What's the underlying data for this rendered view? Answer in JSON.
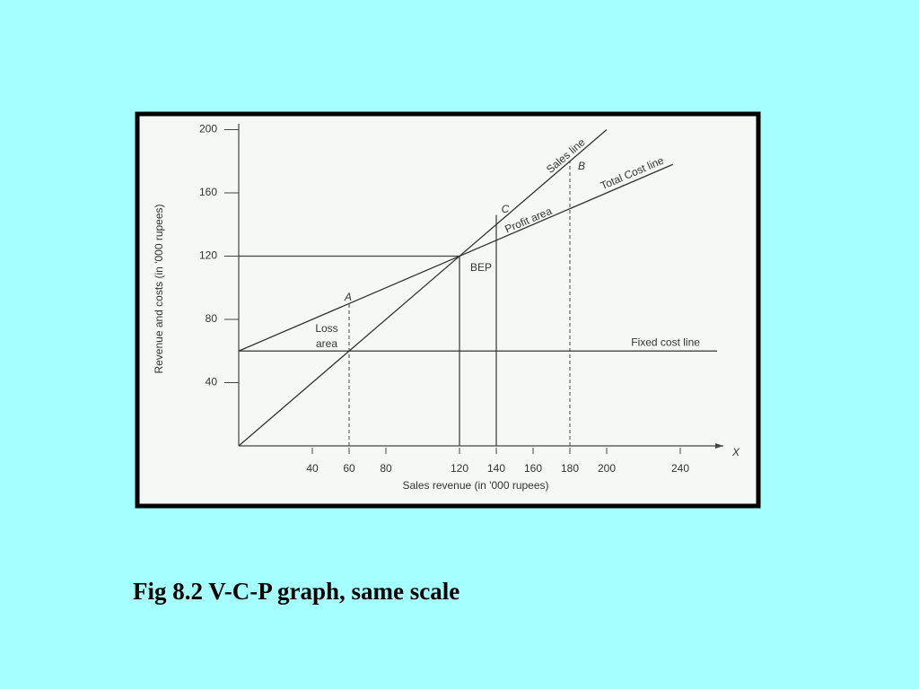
{
  "chart_data": {
    "type": "line",
    "title": "Fig 8.2 V-C-P graph, same scale",
    "x_label": "Sales revenue (in '000 rupees)",
    "y_label": "Revenue and costs (in '000 rupees)",
    "xlim": [
      0,
      260
    ],
    "ylim": [
      0,
      200
    ],
    "xticks": [
      40,
      60,
      80,
      120,
      140,
      160,
      180,
      200,
      240
    ],
    "yticks": [
      40,
      80,
      120,
      160,
      200
    ],
    "series": [
      {
        "name": "Sales line",
        "color": "#333333",
        "x": [
          0,
          200
        ],
        "values": [
          0,
          200
        ]
      },
      {
        "name": "Total Cost line",
        "color": "#333333",
        "x": [
          0,
          236
        ],
        "values": [
          60,
          178
        ]
      },
      {
        "name": "Fixed cost line",
        "color": "#333333",
        "x": [
          0,
          260
        ],
        "values": [
          60,
          60
        ]
      }
    ],
    "guides": [
      {
        "x": [
          60,
          60
        ],
        "values": [
          0,
          90
        ],
        "dashed": true
      },
      {
        "x": [
          120,
          120
        ],
        "values": [
          0,
          120
        ],
        "dashed": false
      },
      {
        "x": [
          0,
          120
        ],
        "values": [
          120,
          120
        ],
        "dashed": false
      },
      {
        "x": [
          140,
          140
        ],
        "values": [
          0,
          146
        ],
        "dashed": false
      },
      {
        "x": [
          180,
          180
        ],
        "values": [
          0,
          180
        ],
        "dashed": true
      }
    ],
    "annotations": [
      "A",
      "B",
      "C",
      "BEP",
      "Loss",
      "area",
      "Profit area",
      "X"
    ]
  }
}
